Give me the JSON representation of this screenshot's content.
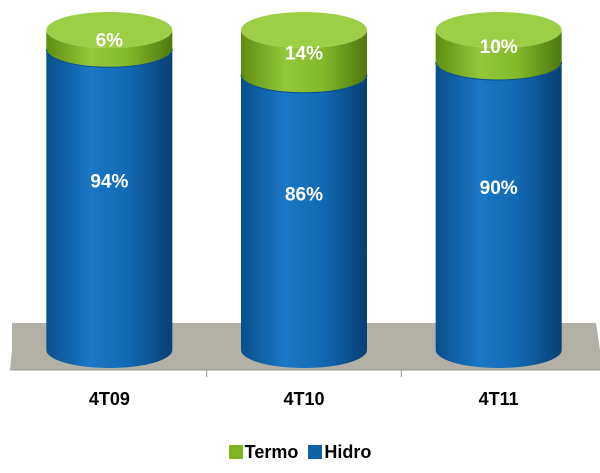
{
  "chart_data": {
    "type": "bar",
    "stacked": true,
    "percent": true,
    "categories": [
      "4T09",
      "4T10",
      "4T11"
    ],
    "series": [
      {
        "name": "Hidro",
        "values": [
          94,
          86,
          90
        ],
        "labels": [
          "94%",
          "86%",
          "90%"
        ],
        "color": "#0e63a8"
      },
      {
        "name": "Termo",
        "values": [
          6,
          14,
          10
        ],
        "labels": [
          "6%",
          "14%",
          "10%"
        ],
        "color": "#7fb521"
      }
    ],
    "legend_order": [
      "Termo",
      "Hidro"
    ],
    "legend_position": "bottom",
    "grid": false,
    "floor_color": "#b3b1a5",
    "ylim": [
      0,
      100
    ]
  }
}
